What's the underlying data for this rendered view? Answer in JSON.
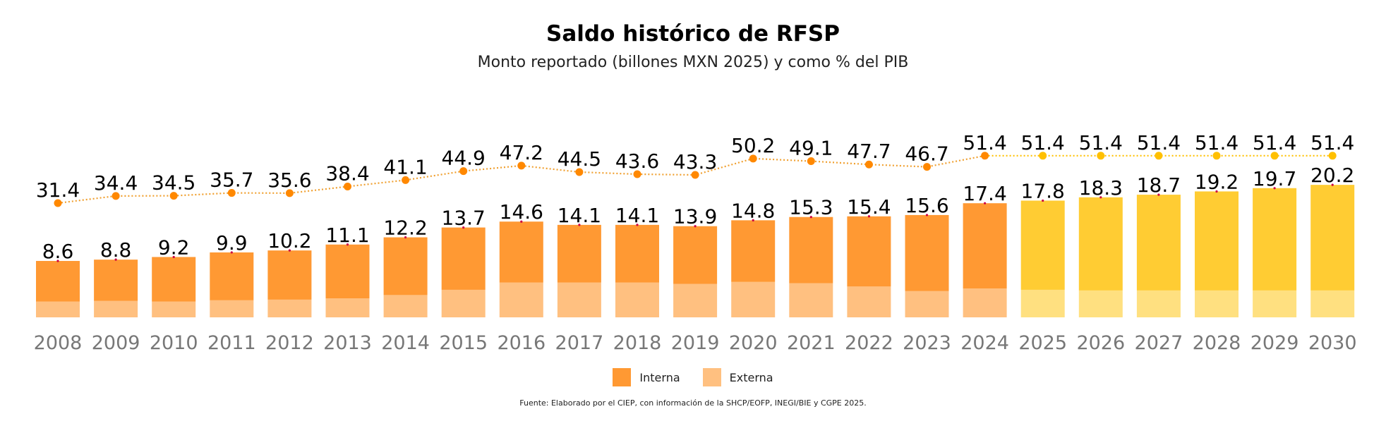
{
  "chart_data": {
    "type": "bar",
    "title": "Saldo histórico de RFSP",
    "subtitle": "Monto reportado (billones MXN 2025) y como % del PIB",
    "source": "Fuente: Elaborado por el CIEP, con información de la SHCP/EOFP, INEGI/BIE y CGPE 2025.",
    "categories": [
      "2008",
      "2009",
      "2010",
      "2011",
      "2012",
      "2013",
      "2014",
      "2015",
      "2016",
      "2017",
      "2018",
      "2019",
      "2020",
      "2021",
      "2022",
      "2023",
      "2024",
      "2025",
      "2026",
      "2027",
      "2028",
      "2029",
      "2030"
    ],
    "totals": [
      8.6,
      8.8,
      9.2,
      9.9,
      10.2,
      11.1,
      12.2,
      13.7,
      14.6,
      14.1,
      14.1,
      13.9,
      14.8,
      15.3,
      15.4,
      15.6,
      17.4,
      17.8,
      18.3,
      18.7,
      19.2,
      19.7,
      20.2
    ],
    "series": [
      {
        "name": "Interna",
        "values": [
          6.2,
          6.3,
          6.8,
          7.3,
          7.5,
          8.2,
          8.8,
          9.5,
          9.3,
          8.8,
          8.8,
          8.8,
          9.4,
          10.1,
          10.7,
          11.6,
          13.0,
          13.6,
          14.2,
          14.6,
          15.1,
          15.6,
          16.1
        ]
      },
      {
        "name": "Externa",
        "values": [
          2.4,
          2.5,
          2.4,
          2.6,
          2.7,
          2.9,
          3.4,
          4.2,
          5.3,
          5.3,
          5.3,
          5.1,
          5.4,
          5.2,
          4.7,
          4.0,
          4.4,
          4.2,
          4.1,
          4.1,
          4.1,
          4.1,
          4.1
        ]
      }
    ],
    "pct_pib": {
      "values": [
        31.4,
        34.4,
        34.5,
        35.7,
        35.6,
        38.4,
        41.1,
        44.9,
        47.2,
        44.5,
        43.6,
        43.3,
        50.2,
        49.1,
        47.7,
        46.7,
        51.4,
        51.4,
        51.4,
        51.4,
        51.4,
        51.4,
        51.4
      ],
      "labels": [
        "31.4",
        "34.4",
        "34.5",
        "35.7",
        "35.6",
        "38.4",
        "41.1",
        "44.9",
        "47.2",
        "44.5",
        "43.6",
        "43.3",
        "50.2",
        "49.1",
        "47.7",
        "46.7",
        "51.4",
        "51.4",
        "51.4",
        "51.4",
        "51.4",
        "51.4",
        "51.4"
      ]
    },
    "total_labels": [
      "8.6",
      "8.8",
      "9.2",
      "9.9",
      "10.2",
      "11.1",
      "12.2",
      "13.7",
      "14.6",
      "14.1",
      "14.1",
      "13.9",
      "14.8",
      "15.3",
      "15.4",
      "15.6",
      "17.4",
      "17.8",
      "18.3",
      "18.7",
      "19.2",
      "19.7",
      "20.2"
    ],
    "projection_start_index": 17,
    "colors": {
      "interna": "#ff9933",
      "externa": "#ffc080",
      "interna_projected": "#ffcc33",
      "externa_projected": "#ffe080",
      "line": "#f0a030",
      "dot": "#ff8800",
      "dot_projected": "#ffc000",
      "axis_text": "#777777"
    },
    "legend": [
      {
        "label": "Interna",
        "color": "#ff9933"
      },
      {
        "label": "Externa",
        "color": "#ffc080"
      }
    ],
    "legend_position": "bottom",
    "grid": false
  }
}
